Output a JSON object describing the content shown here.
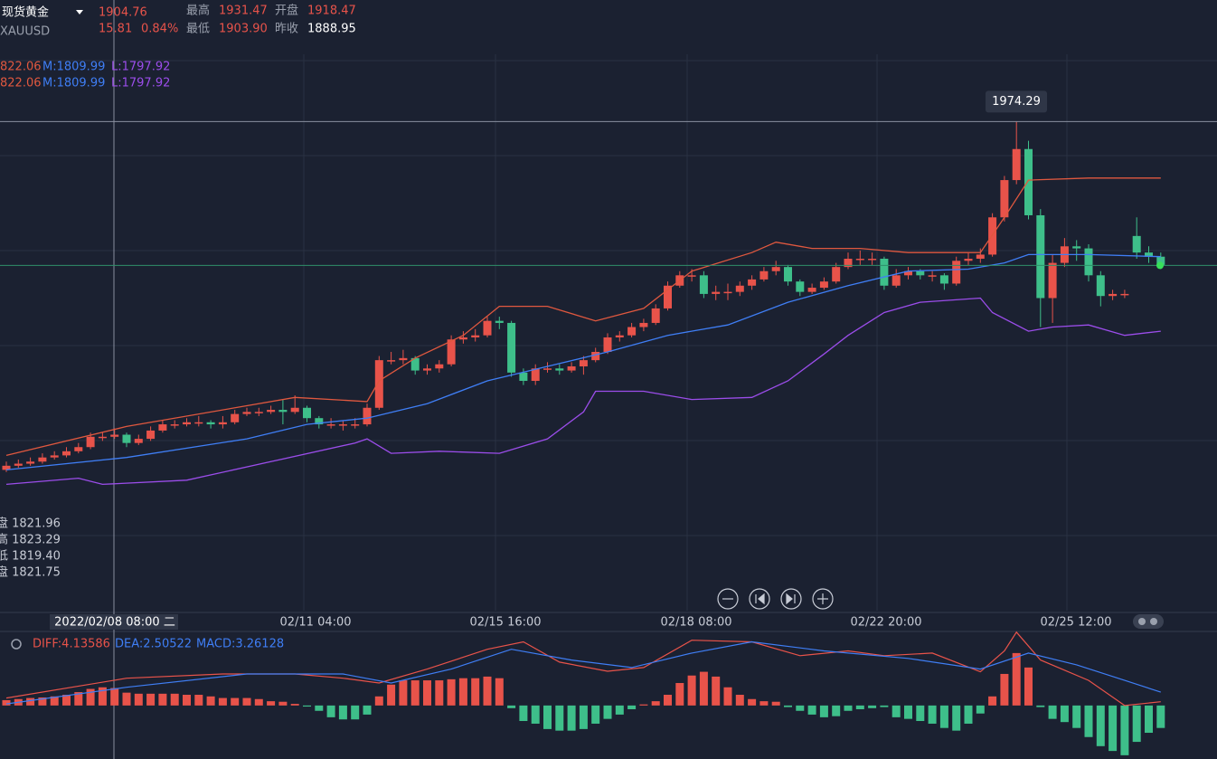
{
  "header": {
    "name": "现货黄金",
    "symbol": "XAUUSD",
    "price": 1904.76,
    "change": "15.81",
    "change_pct": "0.84%",
    "stats": [
      {
        "label": "最高",
        "value": "1931.47"
      },
      {
        "label": "开盘",
        "value": "1918.47"
      },
      {
        "label": "最低",
        "value": "1903.90"
      },
      {
        "label": "昨收",
        "value": "1888.95"
      }
    ]
  },
  "chart_data": {
    "type": "candlestick",
    "ylim": [
      1738,
      2033
    ],
    "up_color": "#e8534a",
    "down_color": "#3ebf8a",
    "open": [
      1806,
      1808,
      1809,
      1810,
      1812,
      1813,
      1815,
      1817,
      1822,
      1822,
      1823,
      1819,
      1821,
      1825,
      1828,
      1828,
      1829,
      1829,
      1828,
      1829,
      1833,
      1834,
      1834,
      1835,
      1834,
      1836,
      1831,
      1828,
      1828,
      1828,
      1828,
      1836,
      1859,
      1859,
      1860,
      1854,
      1855,
      1857,
      1869,
      1870,
      1871,
      1878,
      1877,
      1853,
      1849,
      1855,
      1855,
      1854,
      1856,
      1859,
      1863,
      1870,
      1871,
      1875,
      1877,
      1884,
      1895,
      1900,
      1900,
      1891,
      1892,
      1892,
      1895,
      1898,
      1902,
      1904,
      1897,
      1892,
      1894,
      1897,
      1904,
      1908,
      1908,
      1908,
      1895,
      1900,
      1902,
      1900,
      1900,
      1896,
      1907,
      1908,
      1910,
      1928,
      1946,
      1961,
      1929,
      1889,
      1906,
      1914,
      1913,
      1900,
      1890,
      1891,
      1919,
      1911,
      1909
    ],
    "high": [
      1810,
      1811,
      1812,
      1814,
      1815,
      1817,
      1819,
      1824,
      1824,
      1826,
      1824,
      1823,
      1827,
      1830,
      1830,
      1831,
      1832,
      1830,
      1832,
      1835,
      1836,
      1836,
      1837,
      1840,
      1842,
      1837,
      1832,
      1831,
      1830,
      1831,
      1838,
      1861,
      1863,
      1864,
      1861,
      1857,
      1859,
      1871,
      1873,
      1874,
      1880,
      1880,
      1878,
      1855,
      1857,
      1858,
      1857,
      1858,
      1861,
      1865,
      1872,
      1873,
      1877,
      1879,
      1886,
      1897,
      1902,
      1903,
      1902,
      1895,
      1896,
      1897,
      1900,
      1904,
      1907,
      1905,
      1898,
      1896,
      1899,
      1906,
      1911,
      1912,
      1911,
      1909,
      1903,
      1904,
      1903,
      1902,
      1901,
      1909,
      1911,
      1913,
      1930,
      1948,
      1974.29,
      1965,
      1932,
      1910,
      1918,
      1917,
      1915,
      1902,
      1893,
      1893,
      1928,
      1914,
      1911
    ],
    "low": [
      1805,
      1807,
      1808,
      1809,
      1811,
      1812,
      1814,
      1816,
      1820,
      1821,
      1817,
      1818,
      1820,
      1824,
      1826,
      1827,
      1827,
      1826,
      1826,
      1828,
      1832,
      1832,
      1833,
      1828,
      1833,
      1829,
      1826,
      1826,
      1825,
      1826,
      1827,
      1835,
      1857,
      1857,
      1852,
      1852,
      1853,
      1856,
      1867,
      1868,
      1870,
      1874,
      1851,
      1847,
      1847,
      1853,
      1852,
      1853,
      1852,
      1858,
      1862,
      1868,
      1870,
      1873,
      1876,
      1883,
      1894,
      1897,
      1889,
      1888,
      1888,
      1890,
      1893,
      1897,
      1900,
      1895,
      1890,
      1891,
      1893,
      1896,
      1903,
      1905,
      1905,
      1893,
      1894,
      1898,
      1898,
      1897,
      1893,
      1895,
      1905,
      1906,
      1909,
      1926,
      1944,
      1927,
      1875,
      1877,
      1904,
      1907,
      1897,
      1885,
      1888,
      1889,
      1908,
      1906,
      1903
    ],
    "close": [
      1808,
      1809,
      1810,
      1812,
      1813,
      1815,
      1817,
      1822,
      1822,
      1823,
      1819,
      1821,
      1825,
      1828,
      1828,
      1829,
      1829,
      1828,
      1829,
      1833,
      1834,
      1834,
      1835,
      1834,
      1836,
      1831,
      1828,
      1828,
      1828,
      1828,
      1836,
      1859,
      1859,
      1860,
      1854,
      1855,
      1857,
      1869,
      1870,
      1871,
      1878,
      1877,
      1853,
      1849,
      1855,
      1855,
      1854,
      1856,
      1859,
      1863,
      1870,
      1871,
      1875,
      1877,
      1884,
      1895,
      1900,
      1900,
      1891,
      1892,
      1892,
      1895,
      1898,
      1902,
      1904,
      1897,
      1892,
      1894,
      1897,
      1904,
      1908,
      1908,
      1908,
      1895,
      1900,
      1902,
      1900,
      1900,
      1896,
      1907,
      1908,
      1910,
      1928,
      1946,
      1961,
      1929,
      1889,
      1906,
      1914,
      1913,
      1900,
      1890,
      1891,
      1891,
      1911,
      1909,
      1905
    ],
    "bands": [
      {
        "color": "#e0583f",
        "x": [
          0,
          10,
          20,
          24,
          30,
          31,
          34,
          38,
          41,
          45,
          49,
          53,
          57,
          62,
          64,
          67,
          71,
          75,
          81,
          83,
          85,
          90,
          96
        ],
        "values": [
          1813,
          1827,
          1837,
          1841,
          1839,
          1849,
          1860,
          1871,
          1885,
          1885,
          1878,
          1884,
          1902,
          1911,
          1916,
          1913,
          1913,
          1911,
          1911,
          1928,
          1946,
          1947,
          1947
        ]
      },
      {
        "color": "#3f7ef5",
        "x": [
          0,
          10,
          20,
          25,
          30,
          35,
          40,
          45,
          50,
          55,
          60,
          65,
          70,
          75,
          80,
          83,
          85,
          90,
          96
        ],
        "values": [
          1806,
          1812,
          1821,
          1828,
          1831,
          1838,
          1849,
          1856,
          1863,
          1871,
          1876,
          1887,
          1895,
          1902,
          1903,
          1906,
          1910,
          1910,
          1909
        ]
      },
      {
        "color": "#9b4dea",
        "x": [
          0,
          6,
          8,
          15,
          22,
          29,
          30,
          32,
          36,
          41,
          45,
          48,
          49,
          53,
          57,
          62,
          65,
          68,
          70,
          73,
          76,
          81,
          82,
          85,
          87,
          90,
          93,
          96
        ],
        "values": [
          1799,
          1802,
          1799,
          1801,
          1810,
          1819,
          1821,
          1814,
          1815,
          1814,
          1821,
          1834,
          1844,
          1844,
          1840,
          1841,
          1849,
          1862,
          1871,
          1882,
          1887,
          1889,
          1882,
          1873,
          1875,
          1876,
          1871,
          1873
        ]
      }
    ],
    "band_legend": [
      [
        "822.06",
        "M:1809.99",
        "L:1797.92"
      ],
      [
        "822.06",
        "M:1809.99",
        "L:1797.92"
      ]
    ],
    "ohlc_readout": [
      "盘 1821.96",
      "高 1823.29",
      "低 1819.40",
      "盘 1821.75"
    ],
    "x_labels": [
      "2022/02/08 08:00 二",
      "02/11 04:00",
      "02/15 16:00",
      "02/18 08:00",
      "02/22 20:00",
      "02/25 12:00"
    ],
    "macd": {
      "ylim": [
        -10,
        13.5
      ],
      "histogram": [
        1.0,
        1.2,
        1.4,
        1.5,
        1.7,
        2.0,
        2.5,
        3.1,
        3.4,
        3.26,
        2.4,
        2.2,
        2.2,
        2.2,
        2.2,
        2.0,
        2.0,
        1.7,
        1.4,
        1.4,
        1.4,
        1.2,
        0.8,
        0.7,
        0.3,
        -0.2,
        -1.0,
        -2.2,
        -2.6,
        -2.6,
        -1.7,
        1.7,
        3.9,
        4.7,
        4.7,
        4.7,
        4.7,
        4.9,
        5.1,
        5.1,
        5.4,
        5.1,
        -0.5,
        -2.9,
        -3.4,
        -4.4,
        -4.7,
        -4.7,
        -4.4,
        -3.4,
        -2.5,
        -1.7,
        -0.7,
        0.2,
        0.8,
        2.0,
        4.2,
        5.6,
        6.3,
        5.4,
        3.4,
        2.0,
        1.2,
        0.8,
        0.7,
        -0.3,
        -1.0,
        -1.7,
        -2.2,
        -2.0,
        -1.0,
        -0.7,
        -0.5,
        -0.3,
        -2.2,
        -2.5,
        -2.9,
        -3.4,
        -4.2,
        -4.7,
        -3.4,
        -1.5,
        1.7,
        5.9,
        9.8,
        7.1,
        -0.3,
        -2.5,
        -3.1,
        -4.2,
        -5.9,
        -7.6,
        -8.5,
        -9.3,
        -6.8,
        -5.1,
        -4.2
      ],
      "lines": [
        {
          "color": "#e8534a",
          "x": [
            0,
            10,
            18,
            24,
            28,
            31,
            35,
            40,
            43,
            46,
            50,
            53,
            57,
            62,
            66,
            70,
            73,
            77,
            81,
            83,
            84,
            86,
            90,
            93,
            96
          ],
          "values": [
            1.4,
            5.1,
            5.9,
            5.9,
            5.1,
            4.2,
            6.8,
            10.5,
            11.9,
            8.1,
            6.4,
            7.1,
            12.2,
            11.9,
            9.3,
            10.2,
            9.3,
            9.8,
            6.3,
            10.2,
            13.7,
            8.5,
            4.7,
            0,
            0.7
          ]
        },
        {
          "color": "#3f7ef5",
          "x": [
            0,
            10,
            20,
            28,
            32,
            37,
            42,
            47,
            52,
            57,
            62,
            68,
            75,
            81,
            85,
            89,
            93,
            96
          ],
          "values": [
            0.3,
            3.4,
            5.9,
            5.9,
            4.2,
            6.8,
            10.5,
            8.5,
            7.1,
            9.8,
            11.9,
            10.2,
            8.8,
            6.8,
            9.8,
            7.6,
            4.7,
            2.5
          ]
        }
      ],
      "legend": [
        "DIFF:4.13586",
        "DEA:2.50522",
        "MACD:3.26128"
      ]
    }
  }
}
